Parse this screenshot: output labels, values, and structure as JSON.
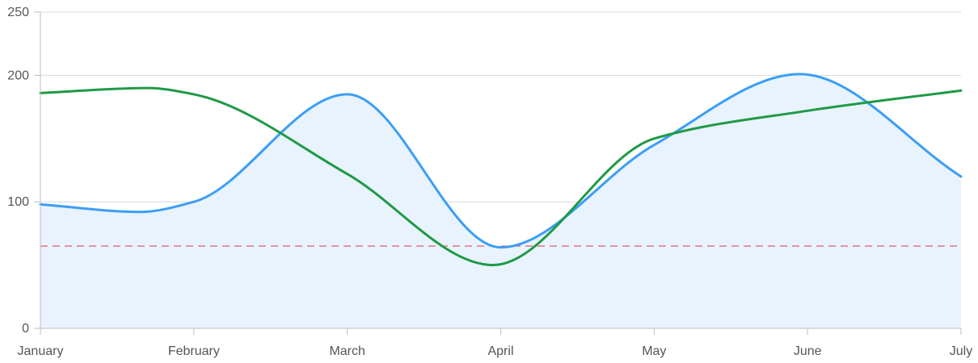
{
  "chart_data": {
    "type": "line",
    "categories": [
      "January",
      "February",
      "March",
      "April",
      "May",
      "June",
      "July"
    ],
    "y_ticks": [
      0,
      100,
      200,
      250
    ],
    "ylim": [
      0,
      250
    ],
    "grid": true,
    "series": [
      {
        "color": "#3b9ef5",
        "fill": "#e8f3fd",
        "area": true,
        "x": [
          0,
          0.65,
          1.0,
          2.0,
          3.0,
          4.0,
          4.95,
          6.0
        ],
        "values": [
          98,
          92,
          100,
          185,
          64,
          145,
          201,
          120
        ]
      },
      {
        "color": "#1e9a46",
        "area": false,
        "x": [
          0,
          0.7,
          1.0,
          2.0,
          2.95,
          4.0,
          5.0,
          6.0
        ],
        "values": [
          186,
          190,
          185,
          122,
          50,
          150,
          172,
          188
        ]
      }
    ],
    "reference_line": {
      "value": 65,
      "color": "#e06b78",
      "style": "dashed"
    }
  }
}
